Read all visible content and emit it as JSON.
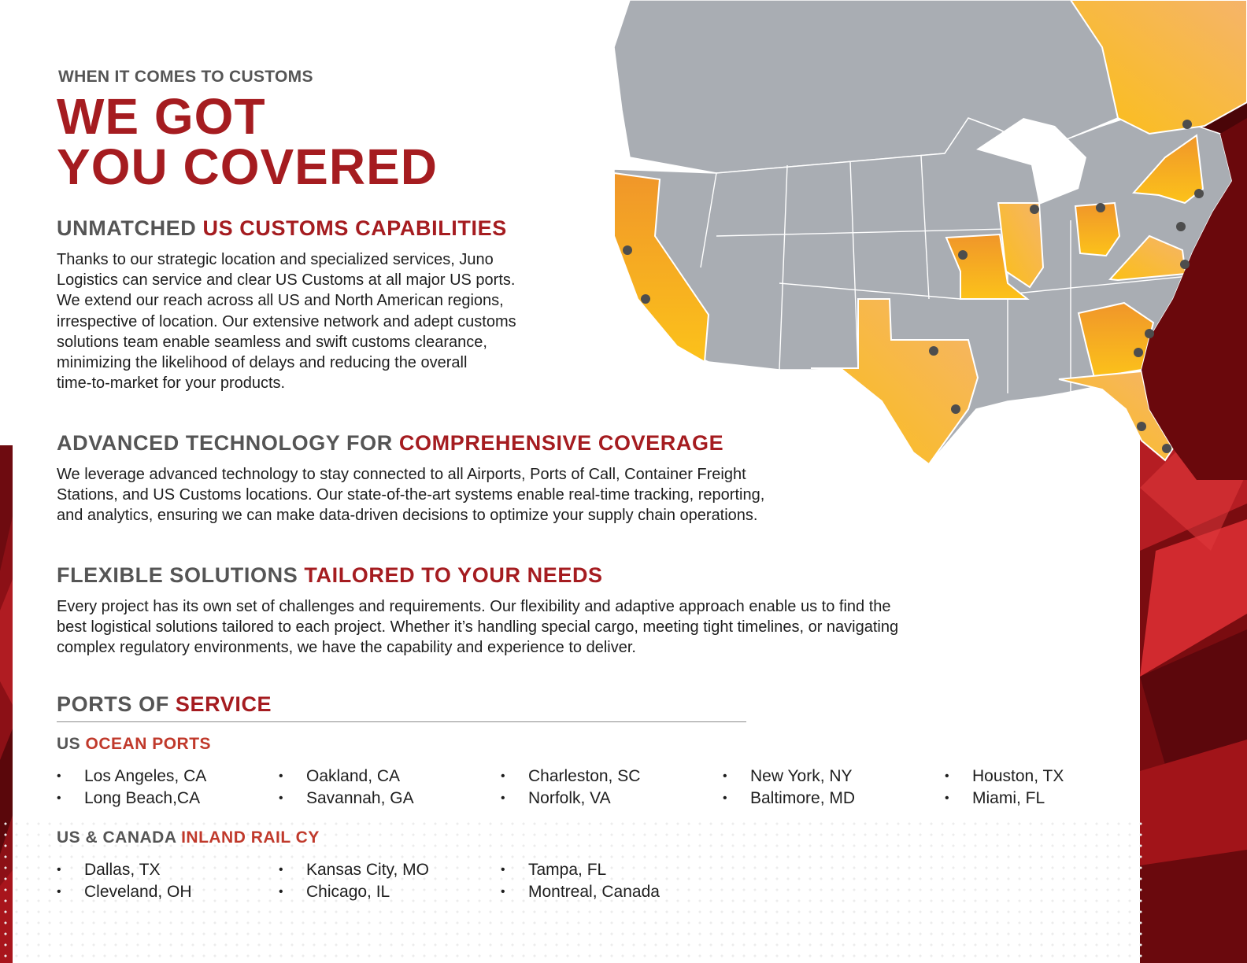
{
  "header": {
    "eyebrow": "WHEN IT COMES TO CUSTOMS",
    "headline_line1": "WE GOT",
    "headline_line2": "YOU COVERED"
  },
  "sections": [
    {
      "title_plain": "UNMATCHED ",
      "title_highlight": "US CUSTOMS CAPABILITIES",
      "body": [
        "Thanks to our strategic location and specialized services, Juno",
        "Logistics can service and clear US Customs at all major US ports.",
        "We extend our reach across all US and North American regions,",
        "irrespective of location. Our extensive network and adept customs",
        "solutions team enable seamless and swift customs clearance,",
        "minimizing the likelihood of delays and reducing the overall",
        "time-to-market for your products."
      ]
    },
    {
      "title_plain": "ADVANCED TECHNOLOGY FOR ",
      "title_highlight": "COMPREHENSIVE COVERAGE",
      "body": [
        "We leverage advanced technology to stay connected to all Airports, Ports of Call, Container Freight",
        "Stations, and US Customs locations. Our state-of-the-art systems enable real-time tracking, reporting,",
        "and analytics, ensuring we can make data-driven decisions to optimize your supply chain operations."
      ]
    },
    {
      "title_plain": "FLEXIBLE SOLUTIONS ",
      "title_highlight": "TAILORED TO YOUR NEEDS",
      "body": [
        "Every project has its own set of challenges and requirements. Our flexibility and adaptive approach enable us to find the",
        "best logistical solutions tailored to each project. Whether it’s handling special cargo, meeting tight timelines, or navigating",
        "complex regulatory environments, we have the capability and experience to deliver."
      ]
    }
  ],
  "ports_of_service": {
    "title_plain": "PORTS OF ",
    "title_highlight": "SERVICE",
    "bullet": "•",
    "ocean": {
      "title_plain": "US ",
      "title_highlight": "OCEAN PORTS",
      "items": [
        "Los Angeles, CA",
        "Long Beach,CA",
        "Oakland, CA",
        "Savannah, GA",
        "Charleston, SC",
        "Norfolk, VA",
        "New York, NY",
        "Baltimore, MD",
        "Houston, TX",
        "Miami, FL"
      ]
    },
    "rail": {
      "title_plain": "US & CANADA ",
      "title_highlight": "INLAND RAIL CY",
      "items": [
        "Dallas, TX",
        "Cleveland, OH",
        "Kansas City, MO",
        "Chicago, IL",
        "Tampa, FL",
        "Montreal, Canada"
      ]
    }
  },
  "colors": {
    "brand_red": "#a51c20",
    "heading_gray": "#555555",
    "map_gray": "#a9adb3",
    "highlight_orange": "#f5a623",
    "highlight_yellow": "#fbbf15",
    "port_marker": "#4d4d4d"
  },
  "map": {
    "highlighted_regions": [
      "California",
      "Texas",
      "Missouri",
      "Illinois",
      "Ohio",
      "Virginia",
      "Georgia",
      "South Carolina",
      "Florida",
      "New York",
      "Quebec"
    ]
  }
}
